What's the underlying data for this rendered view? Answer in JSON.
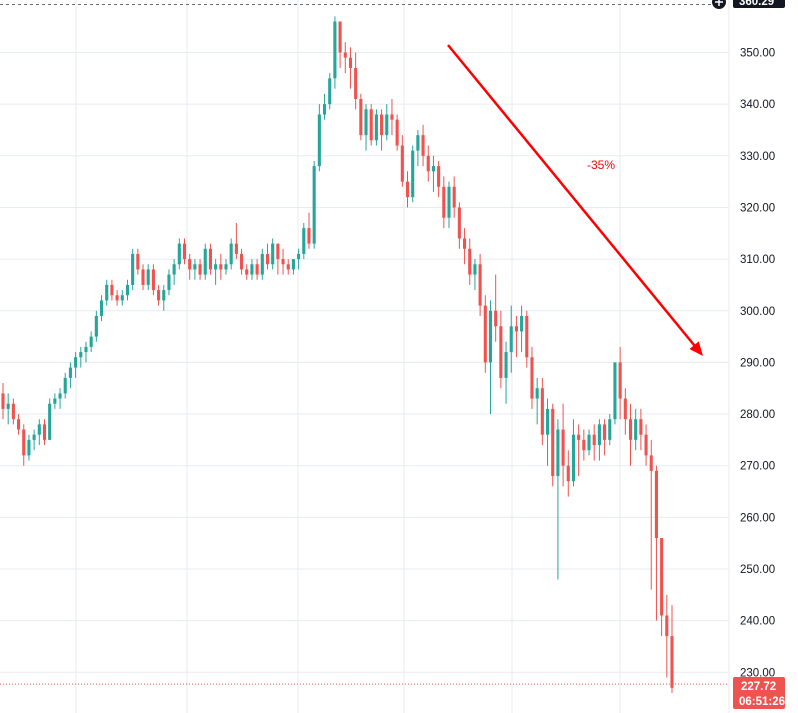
{
  "chart_data": {
    "type": "candlestick",
    "title": "",
    "xlabel": "",
    "ylabel": "",
    "ylim": [
      225.5,
      360
    ],
    "y_ticks": [
      "350.00",
      "340.00",
      "330.00",
      "320.00",
      "310.00",
      "300.00",
      "290.00",
      "280.00",
      "270.00",
      "260.00",
      "250.00",
      "240.00",
      "230.00"
    ],
    "y_tick_values": [
      350,
      340,
      330,
      320,
      310,
      300,
      290,
      280,
      270,
      260,
      250,
      240,
      230
    ],
    "grid": true,
    "top_price_label": "360.29",
    "last_price": {
      "value": 227.72,
      "label": "227.72",
      "countdown": "06:51:26"
    },
    "annotation": {
      "text": "-35%",
      "from": [
        448,
        45
      ],
      "to": [
        703,
        356
      ]
    },
    "colors": {
      "up": "#26a69a",
      "down": "#ef5350",
      "grid": "#e7ebf2",
      "arrow": "#ff0000",
      "price_tag": "#ef5350",
      "text": "#131722"
    },
    "candles": [
      [
        284,
        286,
        279,
        281
      ],
      [
        281,
        284,
        278,
        282
      ],
      [
        282,
        283,
        278,
        279
      ],
      [
        279,
        280,
        276,
        277
      ],
      [
        277,
        278,
        270,
        272
      ],
      [
        272,
        276,
        271,
        275
      ],
      [
        275,
        277,
        273,
        276
      ],
      [
        276,
        279,
        274,
        278
      ],
      [
        278,
        279,
        274,
        275
      ],
      [
        275,
        283,
        275,
        282
      ],
      [
        282,
        284,
        281,
        283
      ],
      [
        283,
        285,
        281,
        284
      ],
      [
        284,
        288,
        283,
        287
      ],
      [
        287,
        290,
        285,
        289
      ],
      [
        289,
        292,
        287,
        291
      ],
      [
        291,
        293,
        289,
        292
      ],
      [
        292,
        294,
        290,
        293
      ],
      [
        293,
        296,
        292,
        295
      ],
      [
        295,
        300,
        294,
        299
      ],
      [
        299,
        303,
        298,
        302
      ],
      [
        302,
        306,
        301,
        305
      ],
      [
        305,
        306,
        302,
        303
      ],
      [
        303,
        304,
        301,
        302
      ],
      [
        302,
        304,
        301,
        303
      ],
      [
        303,
        306,
        302,
        305
      ],
      [
        305,
        312,
        304,
        311
      ],
      [
        311,
        312,
        307,
        308
      ],
      [
        308,
        309,
        304,
        305
      ],
      [
        305,
        309,
        304,
        308
      ],
      [
        308,
        309,
        303,
        304
      ],
      [
        304,
        305,
        301,
        302
      ],
      [
        302,
        305,
        300,
        304
      ],
      [
        304,
        308,
        303,
        307
      ],
      [
        307,
        310,
        305,
        309
      ],
      [
        309,
        314,
        308,
        313
      ],
      [
        313,
        314,
        309,
        310
      ],
      [
        310,
        311,
        306,
        308
      ],
      [
        308,
        310,
        306,
        309
      ],
      [
        309,
        310,
        306,
        307
      ],
      [
        307,
        313,
        306,
        312
      ],
      [
        312,
        313,
        307,
        308
      ],
      [
        308,
        310,
        305,
        309
      ],
      [
        309,
        311,
        306,
        308
      ],
      [
        308,
        310,
        307,
        309
      ],
      [
        309,
        314,
        308,
        313
      ],
      [
        313,
        317,
        310,
        311
      ],
      [
        311,
        312,
        307,
        308
      ],
      [
        308,
        309,
        306,
        307
      ],
      [
        307,
        310,
        306,
        309
      ],
      [
        309,
        310,
        306,
        307
      ],
      [
        307,
        312,
        306,
        311
      ],
      [
        311,
        313,
        308,
        309
      ],
      [
        309,
        314,
        308,
        313
      ],
      [
        313,
        313,
        307,
        310
      ],
      [
        310,
        312,
        307,
        309
      ],
      [
        309,
        310,
        307,
        308
      ],
      [
        308,
        310,
        307,
        310
      ],
      [
        310,
        312,
        308,
        311
      ],
      [
        311,
        317,
        310,
        316
      ],
      [
        316,
        319,
        312,
        313
      ],
      [
        313,
        329,
        312,
        328
      ],
      [
        328,
        340,
        327,
        338
      ],
      [
        338,
        342,
        337,
        340
      ],
      [
        340,
        346,
        339,
        345
      ],
      [
        345,
        357,
        343,
        356
      ],
      [
        356,
        356,
        347,
        350
      ],
      [
        350,
        352,
        346,
        349
      ],
      [
        349,
        351,
        343,
        347
      ],
      [
        347,
        350,
        339,
        341
      ],
      [
        341,
        342,
        333,
        334
      ],
      [
        334,
        340,
        331,
        339
      ],
      [
        339,
        340,
        332,
        333
      ],
      [
        333,
        339,
        332,
        338
      ],
      [
        338,
        339,
        331,
        334
      ],
      [
        334,
        340,
        333,
        338
      ],
      [
        338,
        341,
        334,
        337
      ],
      [
        337,
        338,
        331,
        332
      ],
      [
        332,
        334,
        324,
        325
      ],
      [
        325,
        327,
        320,
        322
      ],
      [
        322,
        332,
        321,
        331
      ],
      [
        331,
        335,
        328,
        334
      ],
      [
        334,
        336,
        328,
        330
      ],
      [
        330,
        332,
        325,
        327
      ],
      [
        327,
        330,
        323,
        328
      ],
      [
        328,
        329,
        322,
        324
      ],
      [
        324,
        326,
        316,
        318
      ],
      [
        318,
        325,
        316,
        324
      ],
      [
        324,
        326,
        318,
        320
      ],
      [
        320,
        321,
        312,
        314
      ],
      [
        314,
        316,
        309,
        312
      ],
      [
        312,
        314,
        305,
        307
      ],
      [
        307,
        310,
        304,
        309
      ],
      [
        309,
        311,
        299,
        301
      ],
      [
        301,
        303,
        288,
        290
      ],
      [
        290,
        302,
        280,
        300
      ],
      [
        300,
        307,
        294,
        297
      ],
      [
        297,
        300,
        285,
        287
      ],
      [
        287,
        294,
        282,
        292
      ],
      [
        292,
        301,
        288,
        297
      ],
      [
        297,
        299,
        291,
        296
      ],
      [
        296,
        301,
        292,
        299
      ],
      [
        299,
        300,
        289,
        291
      ],
      [
        291,
        293,
        281,
        283
      ],
      [
        283,
        287,
        278,
        285
      ],
      [
        285,
        287,
        274,
        276
      ],
      [
        276,
        283,
        270,
        281
      ],
      [
        281,
        282,
        266,
        268
      ],
      [
        268,
        279,
        248,
        277
      ],
      [
        277,
        282,
        266,
        270
      ],
      [
        270,
        273,
        264,
        267
      ],
      [
        267,
        279,
        266,
        276
      ],
      [
        276,
        278,
        268,
        275
      ],
      [
        275,
        277,
        271,
        273
      ],
      [
        273,
        277,
        272,
        276
      ],
      [
        276,
        278,
        271,
        274
      ],
      [
        274,
        279,
        271,
        278
      ],
      [
        278,
        279,
        272,
        275
      ],
      [
        275,
        280,
        274,
        279
      ],
      [
        279,
        290,
        278,
        290
      ],
      [
        290,
        293,
        279,
        283
      ],
      [
        283,
        285,
        276,
        279
      ],
      [
        279,
        282,
        270,
        275
      ],
      [
        275,
        281,
        273,
        279
      ],
      [
        279,
        281,
        273,
        276
      ],
      [
        276,
        278,
        270,
        272
      ],
      [
        272,
        275,
        246,
        269
      ],
      [
        269,
        270,
        240,
        256
      ],
      [
        256,
        256,
        237,
        241
      ],
      [
        241,
        245,
        229,
        237
      ],
      [
        237,
        243,
        226,
        227
      ]
    ]
  }
}
